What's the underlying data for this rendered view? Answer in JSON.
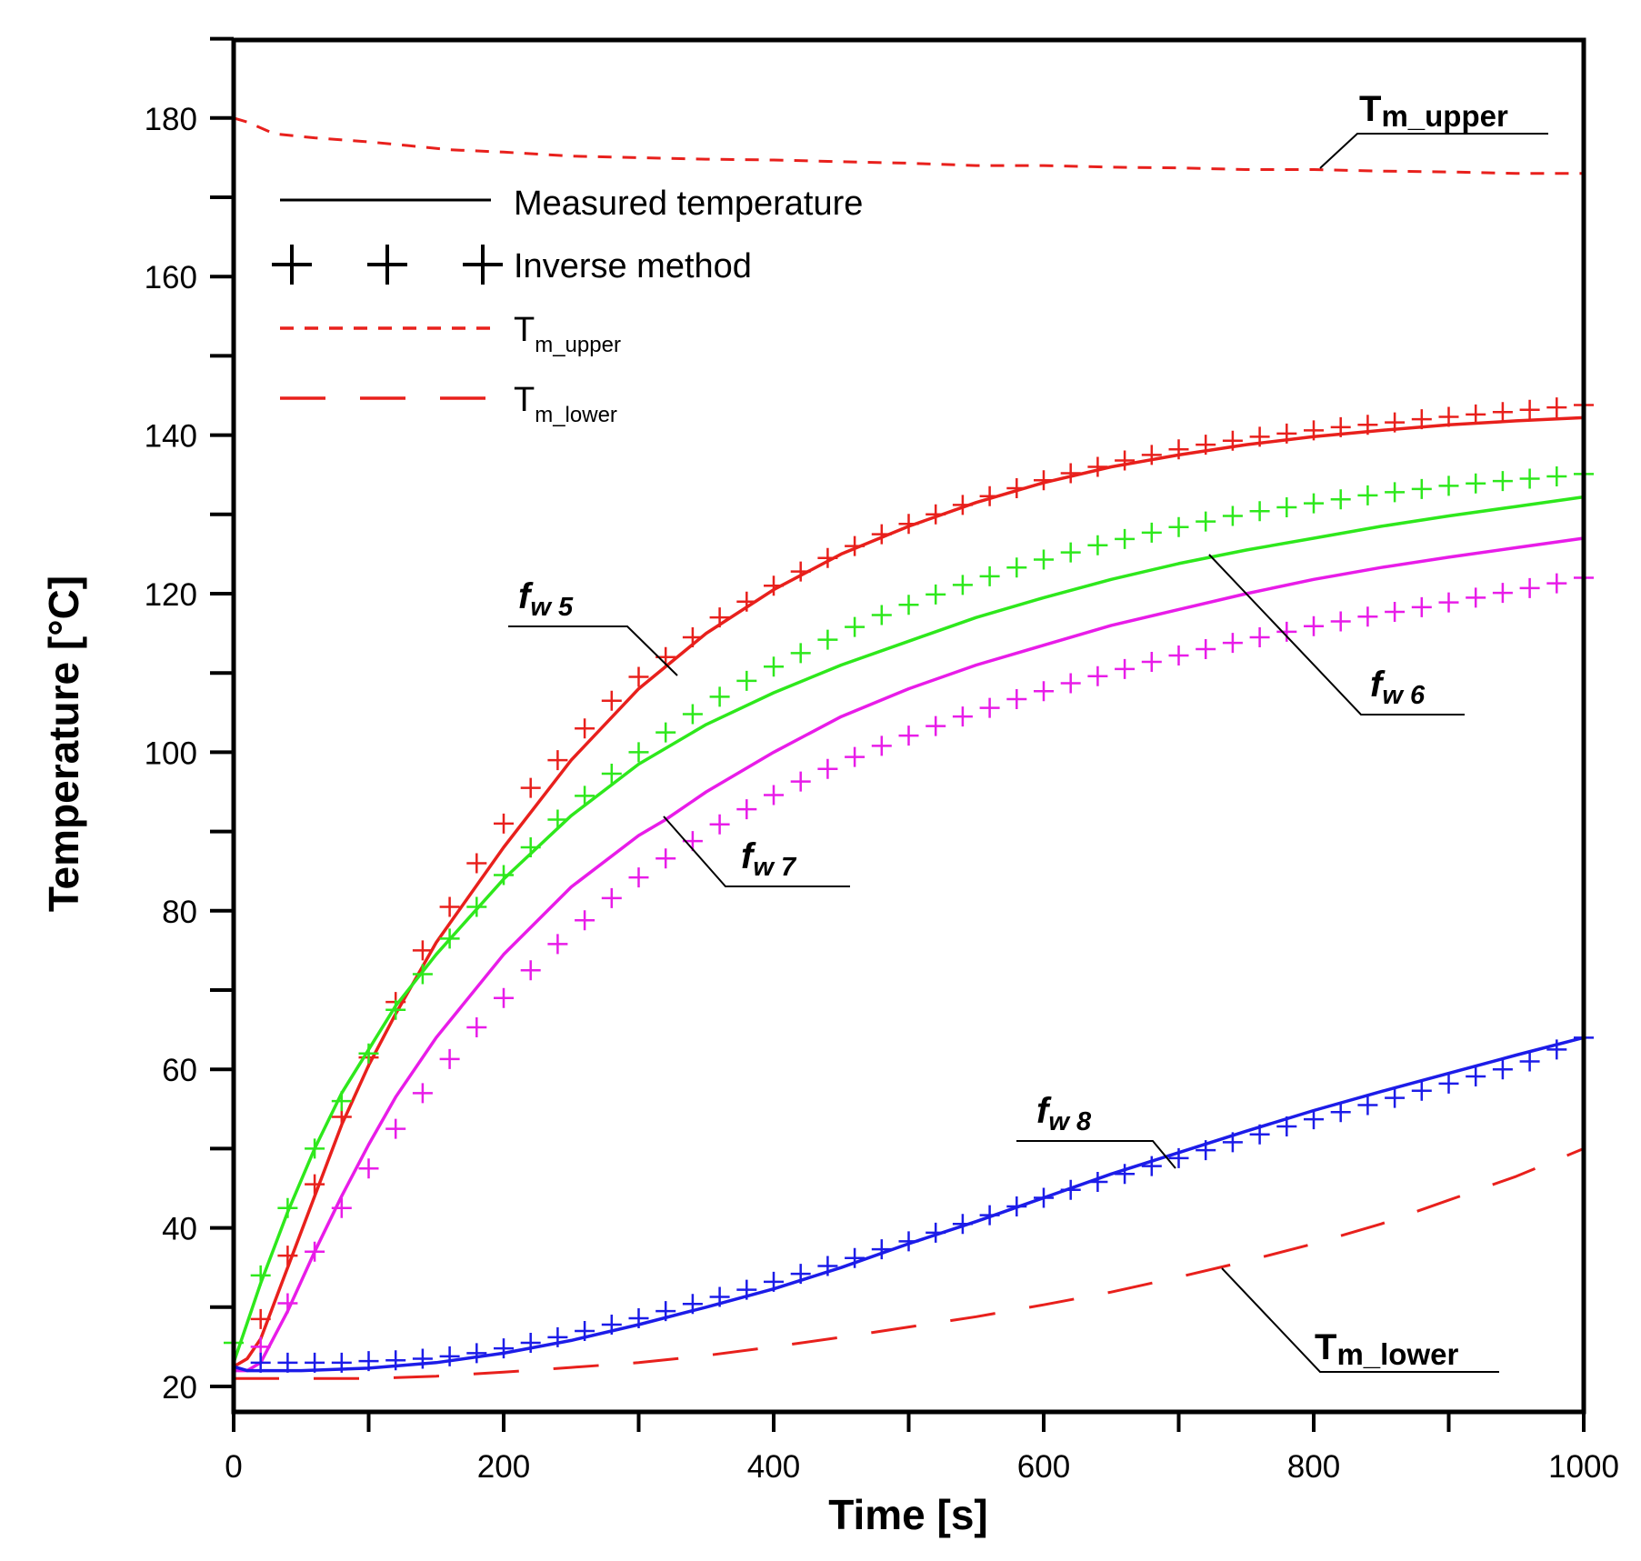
{
  "chart_data": {
    "type": "line",
    "xlabel": "Time [s]",
    "ylabel": "Temperature [°C]",
    "xlim": [
      0,
      1000
    ],
    "ylim": [
      17,
      190
    ],
    "x_ticks": [
      0,
      200,
      400,
      600,
      800,
      1000
    ],
    "y_ticks": [
      20,
      40,
      60,
      80,
      100,
      120,
      140,
      160,
      180
    ],
    "grid": false,
    "legend": {
      "position": "top-left",
      "entries": [
        {
          "label": "Measured temperature",
          "style": "solid",
          "color": "#000000"
        },
        {
          "label": "Inverse method",
          "style": "plus-markers",
          "color": "#000000"
        },
        {
          "label_main": "T",
          "label_sub": "m_upper",
          "style": "short-dash",
          "color": "#e8201c"
        },
        {
          "label_main": "T",
          "label_sub": "m_lower",
          "style": "long-dash",
          "color": "#e8201c"
        }
      ]
    },
    "series": [
      {
        "id": "fw5_measured",
        "kind": "measured",
        "color": "#e8201c",
        "x": [
          0,
          10,
          20,
          40,
          60,
          80,
          100,
          120,
          150,
          200,
          250,
          300,
          350,
          400,
          450,
          500,
          550,
          600,
          650,
          700,
          750,
          800,
          850,
          900,
          950,
          1000
        ],
        "y": [
          22.5,
          23.5,
          26,
          35,
          44,
          53,
          60.5,
          67,
          76,
          88,
          99,
          108,
          115,
          120.5,
          125,
          128.5,
          131.5,
          134,
          136,
          137.5,
          138.8,
          139.8,
          140.6,
          141.3,
          141.8,
          142.2
        ]
      },
      {
        "id": "fw5_inverse",
        "kind": "inverse",
        "color": "#e8201c",
        "x": [
          20,
          40,
          60,
          80,
          100,
          120,
          140,
          160,
          180,
          200,
          220,
          240,
          260,
          280,
          300,
          320,
          340,
          360,
          380,
          400,
          420,
          440,
          460,
          480,
          500,
          520,
          540,
          560,
          580,
          600,
          620,
          640,
          660,
          680,
          700,
          720,
          740,
          760,
          780,
          800,
          820,
          840,
          860,
          880,
          900,
          920,
          940,
          960,
          980,
          1000
        ],
        "y": [
          28.5,
          36.5,
          45.5,
          54,
          61.5,
          68.5,
          75,
          80.5,
          86,
          91,
          95.5,
          99,
          103,
          106.5,
          109.5,
          112,
          114.5,
          117,
          119,
          121,
          122.8,
          124.5,
          126,
          127.5,
          128.8,
          130,
          131.2,
          132.3,
          133.3,
          134.3,
          135.2,
          136,
          136.8,
          137.5,
          138.2,
          138.8,
          139.3,
          139.8,
          140.2,
          140.6,
          141,
          141.3,
          141.6,
          142,
          142.3,
          142.6,
          142.9,
          143.2,
          143.5,
          143.8
        ]
      },
      {
        "id": "fw6_measured",
        "kind": "measured",
        "color": "#2ee81c",
        "x": [
          0,
          10,
          20,
          40,
          60,
          80,
          100,
          120,
          150,
          200,
          250,
          300,
          350,
          400,
          450,
          500,
          550,
          600,
          650,
          700,
          750,
          800,
          850,
          900,
          950,
          1000
        ],
        "y": [
          23,
          28,
          33,
          42,
          50,
          57,
          62.5,
          68,
          74.5,
          84,
          92,
          98.5,
          103.5,
          107.5,
          111,
          114,
          117,
          119.5,
          121.8,
          123.8,
          125.5,
          127,
          128.5,
          129.8,
          131,
          132.2
        ]
      },
      {
        "id": "fw6_inverse",
        "kind": "inverse",
        "color": "#2ee81c",
        "x": [
          0,
          20,
          40,
          60,
          80,
          100,
          120,
          140,
          160,
          180,
          200,
          220,
          240,
          260,
          280,
          300,
          320,
          340,
          360,
          380,
          400,
          420,
          440,
          460,
          480,
          500,
          520,
          540,
          560,
          580,
          600,
          620,
          640,
          660,
          680,
          700,
          720,
          740,
          760,
          780,
          800,
          820,
          840,
          860,
          880,
          900,
          920,
          940,
          960,
          980,
          1000
        ],
        "y": [
          25.5,
          34,
          42.5,
          50,
          56,
          62,
          67.5,
          72,
          76.5,
          80.5,
          84.5,
          88,
          91.5,
          94.5,
          97.3,
          100,
          102.5,
          104.8,
          107,
          109,
          110.8,
          112.5,
          114.2,
          115.8,
          117.3,
          118.6,
          119.9,
          121.1,
          122.2,
          123.3,
          124.3,
          125.2,
          126.1,
          126.9,
          127.7,
          128.4,
          129.1,
          129.8,
          130.4,
          130.9,
          131.4,
          131.9,
          132.4,
          132.8,
          133.2,
          133.6,
          133.9,
          134.2,
          134.5,
          134.8,
          135.1
        ]
      },
      {
        "id": "fw7_measured",
        "kind": "measured",
        "color": "#e81ce8",
        "x": [
          0,
          10,
          20,
          40,
          60,
          80,
          100,
          120,
          150,
          200,
          250,
          300,
          320,
          350,
          400,
          450,
          500,
          550,
          600,
          650,
          700,
          750,
          800,
          850,
          900,
          950,
          1000
        ],
        "y": [
          22,
          22,
          23,
          29.5,
          37,
          44,
          50.5,
          56.5,
          64,
          74.5,
          83,
          89.5,
          91.5,
          95,
          100,
          104.5,
          108,
          111,
          113.5,
          116,
          118,
          120,
          121.8,
          123.3,
          124.6,
          125.8,
          127
        ]
      },
      {
        "id": "fw7_inverse",
        "kind": "inverse",
        "color": "#e81ce8",
        "x": [
          20,
          40,
          60,
          80,
          100,
          120,
          140,
          160,
          180,
          200,
          220,
          240,
          260,
          280,
          300,
          320,
          340,
          360,
          380,
          400,
          420,
          440,
          460,
          480,
          500,
          520,
          540,
          560,
          580,
          600,
          620,
          640,
          660,
          680,
          700,
          720,
          740,
          760,
          780,
          800,
          820,
          840,
          860,
          880,
          900,
          920,
          940,
          960,
          980,
          1000
        ],
        "y": [
          25,
          30.5,
          37,
          42.5,
          47.5,
          52.5,
          57,
          61.3,
          65.3,
          69,
          72.5,
          75.8,
          78.8,
          81.6,
          84.2,
          86.6,
          88.8,
          90.9,
          92.8,
          94.6,
          96.3,
          97.9,
          99.4,
          100.8,
          102.1,
          103.3,
          104.5,
          105.6,
          106.7,
          107.7,
          108.7,
          109.6,
          110.5,
          111.4,
          112.2,
          113,
          113.8,
          114.5,
          115.2,
          115.9,
          116.5,
          117.1,
          117.7,
          118.3,
          118.9,
          119.5,
          120.1,
          120.7,
          121.3,
          122
        ]
      },
      {
        "id": "fw8_measured",
        "kind": "measured",
        "color": "#1c1ce8",
        "x": [
          0,
          10,
          20,
          50,
          100,
          150,
          200,
          250,
          300,
          350,
          400,
          450,
          500,
          550,
          600,
          650,
          700,
          750,
          800,
          850,
          900,
          950,
          1000
        ],
        "y": [
          22.5,
          22,
          22,
          22,
          22.3,
          23,
          24.2,
          25.8,
          27.8,
          30,
          32.3,
          35,
          38,
          40.8,
          43.8,
          46.8,
          49.5,
          52.2,
          54.8,
          57.2,
          59.5,
          61.8,
          64
        ]
      },
      {
        "id": "fw8_inverse",
        "kind": "inverse",
        "color": "#1c1ce8",
        "x": [
          20,
          40,
          60,
          80,
          100,
          120,
          140,
          160,
          180,
          200,
          220,
          240,
          260,
          280,
          300,
          320,
          340,
          360,
          380,
          400,
          420,
          440,
          460,
          480,
          500,
          520,
          540,
          560,
          580,
          600,
          620,
          640,
          660,
          680,
          700,
          720,
          740,
          760,
          780,
          800,
          820,
          840,
          860,
          880,
          900,
          920,
          940,
          960,
          980,
          1000
        ],
        "y": [
          23,
          23,
          23,
          23,
          23.2,
          23.3,
          23.5,
          23.8,
          24.2,
          24.8,
          25.5,
          26.2,
          27,
          27.8,
          28.6,
          29.5,
          30.4,
          31.3,
          32.2,
          33.2,
          34.2,
          35.2,
          36.2,
          37.3,
          38.3,
          39.4,
          40.5,
          41.6,
          42.7,
          43.8,
          44.8,
          45.8,
          46.8,
          47.8,
          48.8,
          49.8,
          50.8,
          51.8,
          52.8,
          53.7,
          54.6,
          55.5,
          56.4,
          57.3,
          58.2,
          59.1,
          60,
          61,
          62.5,
          64
        ]
      },
      {
        "id": "tm_upper",
        "kind": "short-dash",
        "color": "#e8201c",
        "x": [
          0,
          10,
          30,
          60,
          100,
          130,
          160,
          200,
          250,
          300,
          350,
          400,
          450,
          500,
          550,
          600,
          650,
          700,
          750,
          800,
          850,
          900,
          950,
          980,
          1000
        ],
        "y": [
          180,
          179.5,
          178,
          177.5,
          177,
          176.5,
          176,
          175.7,
          175.2,
          175,
          174.8,
          174.7,
          174.5,
          174.3,
          174,
          174,
          173.8,
          173.7,
          173.5,
          173.5,
          173.3,
          173.2,
          173,
          173,
          173
        ]
      },
      {
        "id": "tm_lower",
        "kind": "long-dash",
        "color": "#e8201c",
        "x": [
          0,
          50,
          100,
          150,
          200,
          250,
          300,
          350,
          400,
          450,
          500,
          550,
          600,
          650,
          700,
          750,
          800,
          850,
          900,
          950,
          1000
        ],
        "y": [
          21,
          21,
          21,
          21.3,
          21.8,
          22.4,
          23,
          23.9,
          25,
          26.2,
          27.5,
          28.8,
          30.3,
          31.9,
          33.8,
          35.8,
          38,
          40.5,
          43.5,
          46.5,
          50
        ]
      }
    ],
    "annotations": [
      {
        "label_main": "f",
        "label_sub": "w 5",
        "style": "italic"
      },
      {
        "label_main": "f",
        "label_sub": "w 6",
        "style": "italic"
      },
      {
        "label_main": "f",
        "label_sub": "w 7",
        "style": "italic"
      },
      {
        "label_main": "f",
        "label_sub": "w 8",
        "style": "italic"
      },
      {
        "label_main": "T",
        "label_sub": "m_upper",
        "style": "bold"
      },
      {
        "label_main": "T",
        "label_sub": "m_lower",
        "style": "bold"
      }
    ]
  }
}
